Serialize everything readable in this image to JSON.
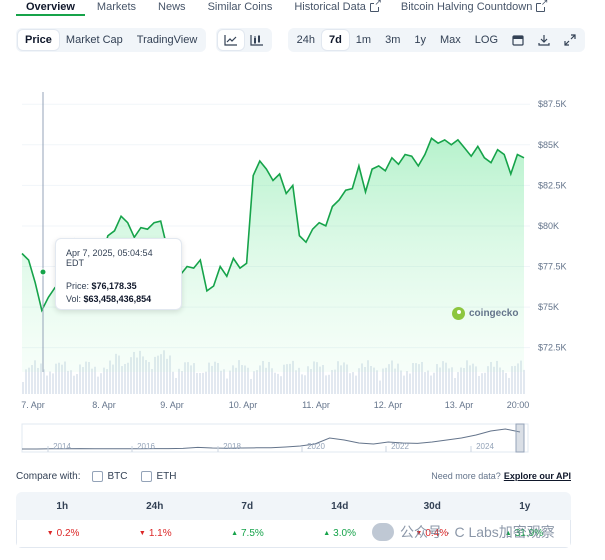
{
  "tabs": [
    {
      "label": "Overview",
      "active": true,
      "external": false
    },
    {
      "label": "Markets",
      "active": false,
      "external": false
    },
    {
      "label": "News",
      "active": false,
      "external": false
    },
    {
      "label": "Similar Coins",
      "active": false,
      "external": false
    },
    {
      "label": "Historical Data",
      "active": false,
      "external": true
    },
    {
      "label": "Bitcoin Halving Countdown",
      "active": false,
      "external": true
    }
  ],
  "toolbar": {
    "views": [
      "Price",
      "Market Cap",
      "TradingView"
    ],
    "active_view": "Price",
    "chart_type_icons": [
      "line-chart-icon",
      "candlestick-chart-icon"
    ],
    "ranges": [
      "24h",
      "7d",
      "1m",
      "3m",
      "1y",
      "Max",
      "LOG"
    ],
    "active_range": "7d",
    "action_icons": [
      "calendar-icon",
      "download-icon",
      "expand-icon"
    ]
  },
  "tooltip": {
    "date": "Apr 7, 2025, 05:04:54 EDT",
    "price_label": "Price:",
    "price": "$76,178.35",
    "vol_label": "Vol:",
    "vol": "$63,458,436,854"
  },
  "brand": "coingecko",
  "colors": {
    "line": "#16a34a",
    "area": "#bbf7d0",
    "accent": "#16a34a",
    "down": "#dc2626"
  },
  "chart_data": {
    "type": "line",
    "series_price_y": [
      78300,
      77900,
      76500,
      74800,
      75600,
      76200,
      76100,
      76800,
      79100,
      78200,
      79000,
      78700,
      78000,
      79400,
      79700,
      80600,
      80200,
      79300,
      79900,
      79800,
      80200,
      80300,
      78600,
      77700,
      77000,
      77500,
      77400,
      77900,
      76000,
      76300,
      77500,
      76900,
      78000,
      77400,
      77700,
      83100,
      84000,
      83500,
      82800,
      83200,
      82000,
      82500,
      79400,
      79000,
      79800,
      80200,
      80000,
      81200,
      81600,
      82200,
      82300,
      83700,
      82100,
      83500,
      83700,
      83400,
      84200,
      83800,
      84400,
      84300,
      83700,
      84400,
      85400,
      85100,
      85300,
      85000,
      85300,
      84800,
      84300,
      84900,
      84200,
      83900,
      84700,
      84400,
      83200,
      84400,
      84200
    ],
    "yticks": [
      "$87.5K",
      "$85K",
      "$82.5K",
      "$80K",
      "$77.5K",
      "$75K",
      "$72.5K"
    ],
    "ylim": [
      71000,
      88500
    ],
    "xticks": [
      "7. Apr",
      "8. Apr",
      "9. Apr",
      "10. Apr",
      "11. Apr",
      "12. Apr",
      "13. Apr",
      "20:00"
    ],
    "navigator_years": [
      "2014",
      "2016",
      "2018",
      "2020",
      "2022",
      "2024"
    ],
    "navigator_trend": [
      0.0,
      0.0,
      0.01,
      0.01,
      0.02,
      0.01,
      0.01,
      0.01,
      0.01,
      0.02,
      0.02,
      0.03,
      0.08,
      0.05,
      0.04,
      0.05,
      0.06,
      0.06,
      0.1,
      0.15,
      0.25,
      0.55,
      0.45,
      0.3,
      0.25,
      0.35,
      0.3,
      0.28,
      0.35,
      0.45,
      0.55,
      0.7,
      0.9,
      1.0,
      0.85
    ]
  },
  "compare": {
    "label": "Compare with:",
    "options": [
      "BTC",
      "ETH"
    ],
    "more_text": "Need more data?",
    "more_link": "Explore our API"
  },
  "performance": {
    "headers": [
      "1h",
      "24h",
      "7d",
      "14d",
      "30d",
      "1y"
    ],
    "values": [
      {
        "text": "0.2%",
        "dir": "down"
      },
      {
        "text": "1.1%",
        "dir": "down"
      },
      {
        "text": "7.5%",
        "dir": "up"
      },
      {
        "text": "3.0%",
        "dir": "up"
      },
      {
        "text": "0.4%",
        "dir": "down"
      },
      {
        "text": "31.9%",
        "dir": "up"
      }
    ]
  },
  "watermark": "公众号 · C Labs加密观察"
}
